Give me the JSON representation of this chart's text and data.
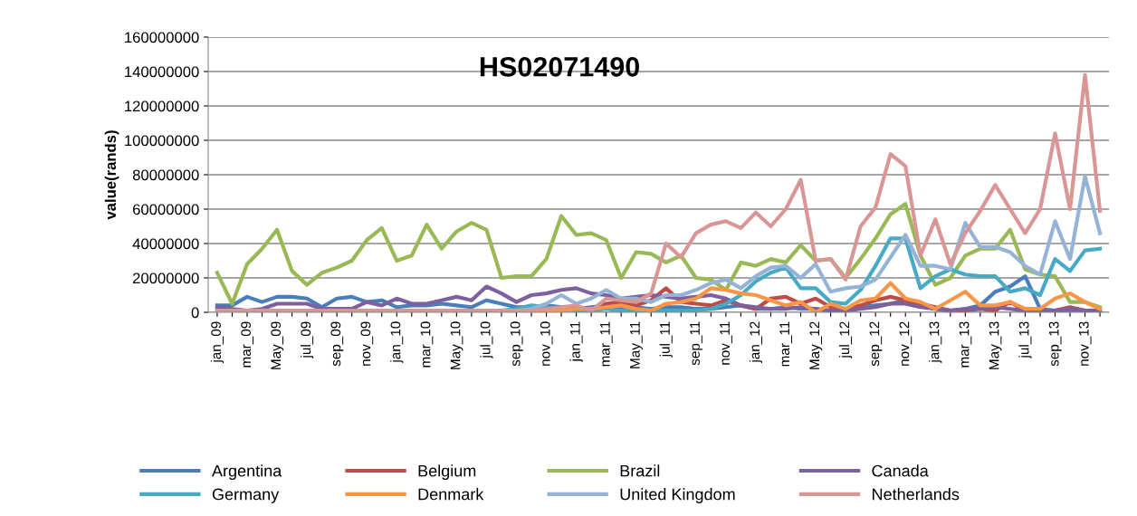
{
  "chart_data": {
    "type": "line",
    "title": "HS02071490",
    "ylabel": "value(rands)",
    "categories": [
      "jan_09",
      null,
      "mar_09",
      null,
      "May_09",
      null,
      "jul_09",
      null,
      "sep_09",
      null,
      "nov_09",
      null,
      "jan_10",
      null,
      "mar_10",
      null,
      "May_10",
      null,
      "jul_10",
      null,
      "sep_10",
      null,
      "nov_10",
      null,
      "jan_11",
      null,
      "mar_11",
      null,
      "May_11",
      null,
      "jul_11",
      null,
      "sep_11",
      null,
      "nov_11",
      null,
      "jan_12",
      null,
      "mar_11",
      null,
      "May_12",
      null,
      "jul_12",
      null,
      "sep_12",
      null,
      "nov_12",
      null,
      "jan_13",
      null,
      "mar_13",
      null,
      "May_13",
      null,
      "jul_13",
      null,
      "sep_13",
      null,
      "nov_13",
      null
    ],
    "ylim": [
      0,
      160000000
    ],
    "yticks": [
      0,
      20000000,
      40000000,
      60000000,
      80000000,
      100000000,
      120000000,
      140000000,
      160000000
    ],
    "grid": "y",
    "legend": "bottom",
    "marker": "none",
    "line_style": "solid",
    "series": [
      {
        "name": "Argentina",
        "color": "#4a7ebb",
        "values": [
          4000000,
          4000000,
          9000000,
          6000000,
          9000000,
          9000000,
          8000000,
          3000000,
          8000000,
          9000000,
          6000000,
          7000000,
          3000000,
          4000000,
          4000000,
          5000000,
          4000000,
          3000000,
          7000000,
          5000000,
          3000000,
          3000000,
          4000000,
          3000000,
          2000000,
          3000000,
          4000000,
          2000000,
          3000000,
          2000000,
          3000000,
          3000000,
          2000000,
          2000000,
          3000000,
          4000000,
          2000000,
          2000000,
          3000000,
          2000000,
          2000000,
          1000000,
          2000000,
          3000000,
          4000000,
          5000000,
          7000000,
          4000000,
          2000000,
          1000000,
          2000000,
          4000000,
          12000000,
          15000000,
          21000000,
          2000000,
          1000000,
          1000000,
          0,
          0
        ]
      },
      {
        "name": "Belgium",
        "color": "#be4b48",
        "values": [
          1000000,
          1000000,
          1000000,
          1000000,
          1000000,
          1000000,
          1000000,
          1000000,
          1000000,
          1000000,
          1000000,
          1000000,
          1000000,
          1000000,
          1000000,
          1000000,
          1000000,
          1000000,
          1000000,
          1000000,
          1000000,
          1000000,
          1000000,
          2000000,
          3000000,
          2000000,
          5000000,
          6000000,
          4000000,
          7000000,
          14000000,
          6000000,
          5000000,
          4000000,
          7000000,
          4000000,
          2000000,
          8000000,
          9000000,
          5000000,
          8000000,
          3000000,
          2000000,
          4000000,
          7000000,
          9000000,
          7000000,
          5000000,
          3000000,
          1000000,
          1000000,
          2000000,
          1000000,
          6000000,
          1000000,
          0,
          1000000,
          3000000,
          1000000,
          1000000
        ]
      },
      {
        "name": "Brazil",
        "color": "#98b954",
        "values": [
          23000000,
          5000000,
          28000000,
          37000000,
          48000000,
          24000000,
          16000000,
          23000000,
          26000000,
          30000000,
          42000000,
          49000000,
          30000000,
          33000000,
          51000000,
          37000000,
          47000000,
          52000000,
          48000000,
          20000000,
          21000000,
          21000000,
          31000000,
          56000000,
          45000000,
          46000000,
          42000000,
          20000000,
          35000000,
          34000000,
          29000000,
          33000000,
          20000000,
          19000000,
          13000000,
          29000000,
          27000000,
          31000000,
          29000000,
          39000000,
          30000000,
          31000000,
          20000000,
          31000000,
          43000000,
          57000000,
          63000000,
          33000000,
          16000000,
          20000000,
          33000000,
          37000000,
          37000000,
          48000000,
          25000000,
          22000000,
          21000000,
          6000000,
          6000000,
          3000000
        ]
      },
      {
        "name": "Canada",
        "color": "#7d60a0",
        "values": [
          3000000,
          2000000,
          1000000,
          2000000,
          5000000,
          5000000,
          5000000,
          2000000,
          2000000,
          2000000,
          6000000,
          4000000,
          8000000,
          5000000,
          5000000,
          7000000,
          9000000,
          7000000,
          15000000,
          11000000,
          6000000,
          10000000,
          11000000,
          13000000,
          14000000,
          11000000,
          10000000,
          8000000,
          9000000,
          10000000,
          9000000,
          8000000,
          9000000,
          10000000,
          8000000,
          4000000,
          3000000,
          2000000,
          2000000,
          3000000,
          2000000,
          1000000,
          1000000,
          2000000,
          3000000,
          5000000,
          5000000,
          3000000,
          2000000,
          1000000,
          2000000,
          2000000,
          3000000,
          2000000,
          1000000,
          1000000,
          1000000,
          2000000,
          1000000,
          1000000
        ]
      },
      {
        "name": "Germany",
        "color": "#46aac5",
        "values": [
          null,
          null,
          null,
          null,
          null,
          null,
          null,
          null,
          null,
          null,
          1000000,
          1000000,
          1000000,
          1000000,
          1000000,
          1000000,
          1000000,
          1000000,
          null,
          1000000,
          2000000,
          4000000,
          3000000,
          2000000,
          1000000,
          1000000,
          2000000,
          1000000,
          1000000,
          1000000,
          1000000,
          1000000,
          1000000,
          2000000,
          5000000,
          10000000,
          18000000,
          23000000,
          26000000,
          14000000,
          14000000,
          6000000,
          5000000,
          13000000,
          27000000,
          43000000,
          43000000,
          14000000,
          21000000,
          25000000,
          22000000,
          21000000,
          21000000,
          12000000,
          14000000,
          10000000,
          31000000,
          24000000,
          36000000,
          37000000
        ]
      },
      {
        "name": "Denmark",
        "color": "#f79646",
        "values": [
          null,
          null,
          null,
          null,
          null,
          null,
          null,
          null,
          null,
          null,
          null,
          null,
          null,
          null,
          null,
          null,
          null,
          null,
          null,
          null,
          null,
          1000000,
          1000000,
          1000000,
          2000000,
          2000000,
          3000000,
          4000000,
          2000000,
          1000000,
          5000000,
          6000000,
          8000000,
          14000000,
          13000000,
          11000000,
          10000000,
          7000000,
          4000000,
          6000000,
          0,
          5000000,
          2000000,
          7000000,
          8000000,
          17000000,
          8000000,
          6000000,
          2000000,
          7000000,
          12000000,
          4000000,
          4000000,
          6000000,
          2000000,
          2000000,
          8000000,
          11000000,
          6000000,
          2000000
        ]
      },
      {
        "name": "United Kingdom",
        "color": "#95b3d7",
        "values": [
          0,
          0,
          0,
          0,
          0,
          0,
          0,
          0,
          0,
          0,
          0,
          0,
          0,
          0,
          0,
          0,
          0,
          0,
          0,
          0,
          1000000,
          2000000,
          5000000,
          10000000,
          5000000,
          8000000,
          13000000,
          8000000,
          8000000,
          6000000,
          10000000,
          10000000,
          13000000,
          17000000,
          19000000,
          14000000,
          21000000,
          26000000,
          27000000,
          20000000,
          28000000,
          12000000,
          14000000,
          15000000,
          19000000,
          32000000,
          45000000,
          27000000,
          27000000,
          25000000,
          52000000,
          38000000,
          38000000,
          35000000,
          27000000,
          22000000,
          53000000,
          31000000,
          79000000,
          46000000
        ]
      },
      {
        "name": "Netherlands",
        "color": "#d99694",
        "values": [
          1000000,
          1000000,
          1000000,
          1000000,
          1000000,
          1000000,
          1000000,
          1000000,
          1000000,
          1000000,
          1000000,
          1000000,
          1000000,
          1000000,
          1000000,
          1000000,
          1000000,
          1000000,
          1000000,
          1000000,
          1000000,
          1000000,
          2000000,
          3000000,
          4000000,
          1000000,
          8000000,
          7000000,
          6000000,
          11000000,
          40000000,
          32000000,
          46000000,
          51000000,
          53000000,
          49000000,
          58000000,
          50000000,
          60000000,
          77000000,
          30000000,
          31000000,
          19000000,
          50000000,
          61000000,
          92000000,
          85000000,
          33000000,
          54000000,
          28000000,
          46000000,
          59000000,
          74000000,
          60000000,
          46000000,
          60000000,
          104000000,
          60000000,
          138000000,
          59000000
        ]
      }
    ]
  }
}
